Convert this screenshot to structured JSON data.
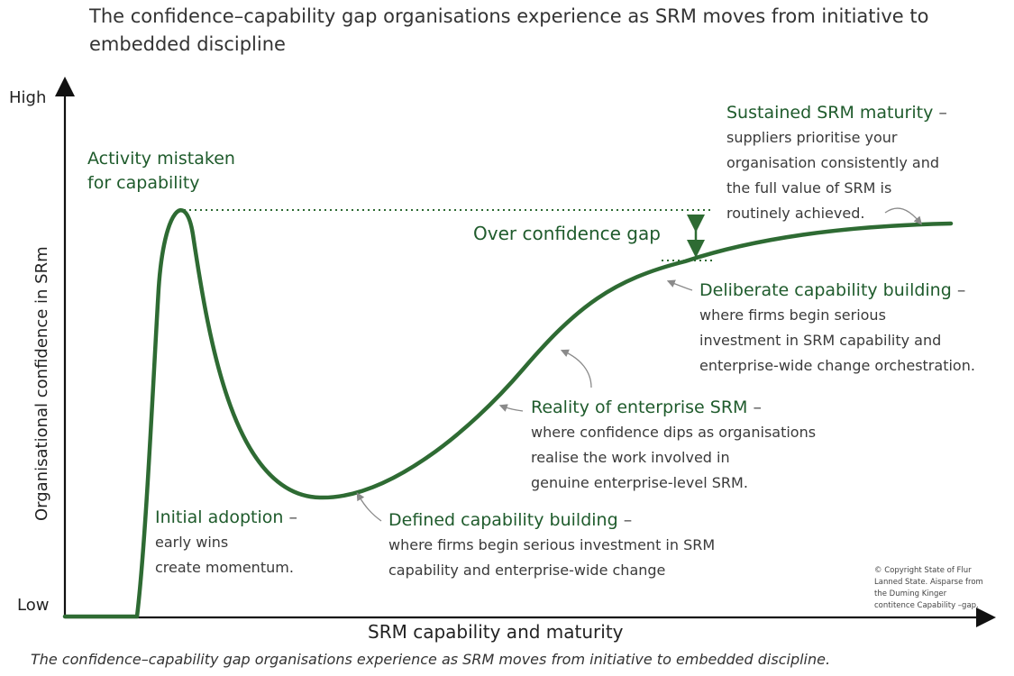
{
  "title": "The confidence–capability gap organisations experience as SRM moves from initiative to embedded discipline",
  "axes": {
    "y_label": "Organisational confidence in SRm",
    "y_high": "High",
    "y_low": "Low",
    "x_label": "SRM capability and maturity"
  },
  "colors": {
    "curve": "#2e6b33",
    "heading": "#1f5b2c",
    "axis": "#111111",
    "text": "#3a3a3a"
  },
  "annotations": {
    "peak": {
      "heading_line1": "Activity mistaken",
      "heading_line2": "for capability"
    },
    "initial": {
      "heading": "Initial adoption",
      "dash": " –",
      "line1": "early wins",
      "line2": "create momentum."
    },
    "defined": {
      "heading": "Defined capability building",
      "dash": " –",
      "line1": "where firms begin serious investment in SRM",
      "line2": "capability and enterprise-wide change"
    },
    "reality": {
      "heading": "Reality of enterprise SRM",
      "dash": " –",
      "line1": "where confidence dips as organisations",
      "line2": "realise the work involved in",
      "line3": "genuine enterprise-level SRM."
    },
    "deliberate": {
      "heading": "Deliberate capability building",
      "dash": " –",
      "line1": "where firms begin serious",
      "line2": "investment in SRM capability and",
      "line3": "enterprise-wide change orchestration."
    },
    "sustained": {
      "heading": "Sustained SRM maturity",
      "dash": " –",
      "line1": "suppliers prioritise your",
      "line2": "organisation consistently and",
      "line3": "the full value of SRM is",
      "line4": "routinely achieved."
    }
  },
  "gap": {
    "label": "Over confidence gap"
  },
  "copyright": {
    "line1": "© Copyright State of Flur",
    "line2": "Lanned State. Aisparse from",
    "line3": "the Duming Kinger",
    "line4": "contitence Capability –gap."
  },
  "caption": "The confidence–capability gap organisations experience as SRM moves from initiative to embedded discipline."
}
